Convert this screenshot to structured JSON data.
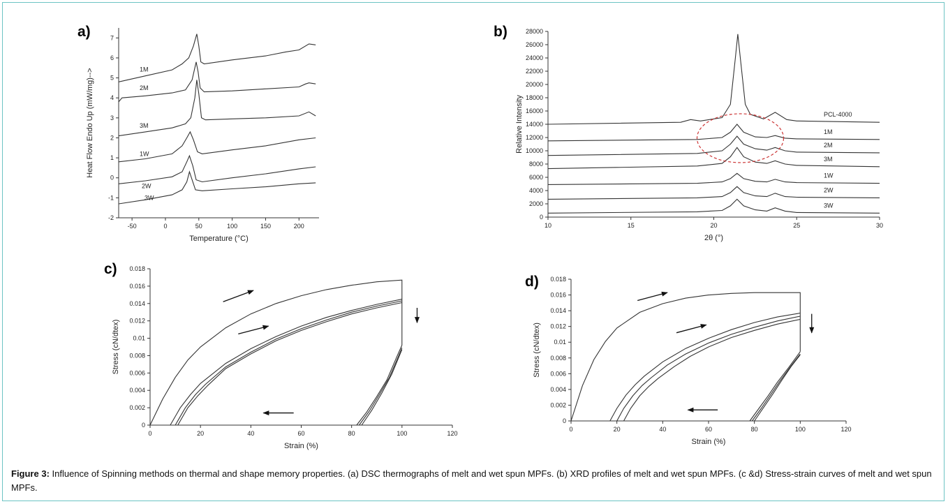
{
  "caption": {
    "label": "Figure 3:",
    "text": " Influence of Spinning methods on thermal and shape memory properties. (a) DSC thermographs of melt and wet spun MPFs. (b) XRD profiles of melt and wet spun MPFs. (c &d) Stress-strain curves of melt and wet spun MPFs."
  },
  "chart_data": [
    {
      "panel": "a)",
      "type": "line",
      "xlabel": "Temperature (°C)",
      "ylabel": "Heat Flow Endo Up (mW/mg)-->",
      "xlim": [
        -70,
        230
      ],
      "ylim": [
        -2,
        7.5
      ],
      "xticks": [
        -50,
        0,
        50,
        100,
        150,
        200
      ],
      "yticks": [
        -2,
        -1,
        0,
        1,
        2,
        3,
        4,
        5,
        6,
        7
      ],
      "series": [
        {
          "name": "1M",
          "x": [
            -70,
            -30,
            10,
            25,
            35,
            42,
            47,
            50,
            53,
            58,
            100,
            150,
            180,
            200,
            215,
            225
          ],
          "y": [
            4.8,
            5.1,
            5.4,
            5.7,
            6.0,
            6.6,
            7.2,
            6.6,
            5.8,
            5.7,
            5.9,
            6.1,
            6.3,
            6.4,
            6.7,
            6.65
          ]
        },
        {
          "name": "2M",
          "x": [
            -70,
            -65,
            -30,
            10,
            30,
            40,
            46,
            49,
            52,
            58,
            100,
            150,
            200,
            210,
            215,
            225
          ],
          "y": [
            3.8,
            4.0,
            4.1,
            4.25,
            4.4,
            4.9,
            5.8,
            5.3,
            4.5,
            4.3,
            4.35,
            4.45,
            4.55,
            4.7,
            4.75,
            4.7
          ]
        },
        {
          "name": "3M",
          "x": [
            -70,
            -30,
            10,
            30,
            38,
            44,
            47,
            50,
            54,
            60,
            100,
            150,
            200,
            215,
            225
          ],
          "y": [
            2.1,
            2.3,
            2.5,
            2.7,
            3.0,
            4.0,
            4.9,
            4.2,
            3.0,
            2.9,
            2.95,
            3.0,
            3.1,
            3.3,
            3.1
          ]
        },
        {
          "name": "1W",
          "x": [
            -70,
            -30,
            10,
            25,
            32,
            37,
            42,
            48,
            55,
            100,
            150,
            200,
            225
          ],
          "y": [
            0.8,
            0.95,
            1.2,
            1.6,
            2.0,
            2.3,
            1.9,
            1.3,
            1.2,
            1.4,
            1.6,
            1.9,
            2.0
          ]
        },
        {
          "name": "2W",
          "x": [
            -70,
            -30,
            10,
            25,
            32,
            36,
            41,
            46,
            55,
            100,
            150,
            200,
            225
          ],
          "y": [
            -0.3,
            -0.15,
            0.05,
            0.3,
            0.8,
            1.1,
            0.6,
            -0.1,
            -0.2,
            0.0,
            0.2,
            0.45,
            0.55
          ]
        },
        {
          "name": "3W",
          "x": [
            -70,
            -30,
            10,
            25,
            32,
            36,
            40,
            45,
            55,
            100,
            150,
            200,
            225
          ],
          "y": [
            -1.3,
            -1.1,
            -0.85,
            -0.6,
            -0.2,
            0.3,
            -0.1,
            -0.6,
            -0.65,
            -0.55,
            -0.45,
            -0.3,
            -0.25
          ]
        }
      ]
    },
    {
      "panel": "b)",
      "type": "line",
      "xlabel": "2θ (°)",
      "ylabel": "Relative Intensity",
      "xlim": [
        10,
        30
      ],
      "ylim": [
        0,
        28000
      ],
      "xticks": [
        10,
        15,
        20,
        25,
        30
      ],
      "yticks": [
        0,
        2000,
        4000,
        6000,
        8000,
        10000,
        12000,
        14000,
        16000,
        18000,
        20000,
        22000,
        24000,
        26000,
        28000
      ],
      "annotation": "dashed red ellipse around 1M-3M peaks near 2θ 21.5°",
      "series": [
        {
          "name": "PCL-4000",
          "x": [
            10,
            18,
            18.6,
            19.2,
            20.5,
            21.0,
            21.3,
            21.45,
            21.6,
            21.9,
            22.2,
            23.0,
            23.7,
            24.4,
            25,
            30
          ],
          "y": [
            14000,
            14300,
            14700,
            14500,
            15000,
            17000,
            24000,
            27600,
            24000,
            17000,
            15500,
            14800,
            15800,
            14700,
            14500,
            14300
          ]
        },
        {
          "name": "1M",
          "x": [
            10,
            19,
            20.5,
            21.0,
            21.4,
            21.8,
            22.5,
            23.2,
            23.7,
            24.3,
            25,
            30
          ],
          "y": [
            11500,
            11700,
            12000,
            12800,
            14000,
            12800,
            12100,
            12000,
            12300,
            11900,
            11800,
            11700
          ]
        },
        {
          "name": "2M",
          "x": [
            10,
            19,
            20.5,
            21.0,
            21.4,
            21.8,
            22.5,
            23.2,
            23.7,
            24.3,
            25,
            30
          ],
          "y": [
            9300,
            9600,
            10000,
            11000,
            12200,
            11000,
            10300,
            10100,
            10500,
            10000,
            9800,
            9700
          ]
        },
        {
          "name": "3M",
          "x": [
            10,
            19,
            20.5,
            21.0,
            21.4,
            21.8,
            22.5,
            23.2,
            23.7,
            24.3,
            25,
            30
          ],
          "y": [
            7300,
            7700,
            8100,
            9100,
            10500,
            9100,
            8300,
            8100,
            8500,
            8000,
            7800,
            7600
          ]
        },
        {
          "name": "1W",
          "x": [
            10,
            19,
            20.5,
            21.0,
            21.4,
            21.8,
            22.5,
            23.2,
            23.7,
            24.3,
            25,
            30
          ],
          "y": [
            4900,
            5100,
            5300,
            5800,
            6600,
            5800,
            5400,
            5300,
            5700,
            5300,
            5200,
            5100
          ]
        },
        {
          "name": "2W",
          "x": [
            10,
            19,
            20.5,
            21.0,
            21.4,
            21.8,
            22.5,
            23.2,
            23.7,
            24.3,
            25,
            30
          ],
          "y": [
            2700,
            2900,
            3100,
            3700,
            4600,
            3700,
            3200,
            3100,
            3600,
            3100,
            3000,
            2900
          ]
        },
        {
          "name": "3W",
          "x": [
            10,
            19,
            20.5,
            21.0,
            21.4,
            21.8,
            22.5,
            23.2,
            23.7,
            24.3,
            25,
            30
          ],
          "y": [
            600,
            800,
            1000,
            1700,
            2700,
            1700,
            1100,
            900,
            1400,
            900,
            700,
            600
          ]
        }
      ]
    },
    {
      "panel": "c)",
      "type": "line",
      "xlabel": "Strain (%)",
      "ylabel": "Stress (cN/dtex)",
      "xlim": [
        0,
        120
      ],
      "ylim": [
        0,
        0.018
      ],
      "xticks": [
        0,
        20,
        40,
        60,
        80,
        100,
        120
      ],
      "yticks": [
        "0",
        "0.002",
        "0.004",
        "0.006",
        "0.008",
        "0.01",
        "0.012",
        "0.014",
        "0.016",
        "0.018"
      ],
      "series": [
        {
          "x": [
            0,
            5,
            10,
            15,
            20,
            30,
            40,
            50,
            60,
            70,
            80,
            90,
            100,
            100
          ],
          "y": [
            0,
            0.003,
            0.0055,
            0.0075,
            0.009,
            0.0112,
            0.0128,
            0.014,
            0.0149,
            0.0156,
            0.0161,
            0.0165,
            0.0167,
            0.0092
          ]
        },
        {
          "x": [
            8,
            12,
            16,
            20,
            30,
            40,
            50,
            60,
            70,
            80,
            90,
            100
          ],
          "y": [
            0,
            0.002,
            0.0035,
            0.0048,
            0.0071,
            0.0088,
            0.0102,
            0.0114,
            0.0124,
            0.0132,
            0.0139,
            0.0145
          ]
        },
        {
          "x": [
            10,
            14,
            18,
            22,
            30,
            40,
            50,
            60,
            70,
            80,
            90,
            100
          ],
          "y": [
            0,
            0.002,
            0.0035,
            0.0047,
            0.0067,
            0.0084,
            0.0099,
            0.0111,
            0.0121,
            0.013,
            0.0137,
            0.0143
          ]
        },
        {
          "x": [
            11,
            15,
            19,
            23,
            30,
            40,
            50,
            60,
            70,
            80,
            90,
            100
          ],
          "y": [
            0,
            0.002,
            0.0034,
            0.0046,
            0.0065,
            0.0082,
            0.0097,
            0.0109,
            0.0119,
            0.0128,
            0.0135,
            0.0141
          ]
        },
        {
          "x": [
            82,
            86,
            90,
            94,
            98,
            100
          ],
          "y": [
            0,
            0.0015,
            0.0033,
            0.0052,
            0.0079,
            0.0092
          ]
        },
        {
          "x": [
            83,
            87,
            91,
            95,
            99,
            100
          ],
          "y": [
            0,
            0.0016,
            0.0035,
            0.0055,
            0.0082,
            0.0089
          ]
        },
        {
          "x": [
            84,
            88,
            92,
            96,
            100
          ],
          "y": [
            0,
            0.0017,
            0.0037,
            0.0059,
            0.0087
          ]
        }
      ],
      "arrows": [
        {
          "from": [
            29,
            0.0142
          ],
          "to": [
            41,
            0.0155
          ]
        },
        {
          "from": [
            35,
            0.0105
          ],
          "to": [
            47,
            0.0114
          ]
        },
        {
          "from": [
            106,
            0.0135
          ],
          "to": [
            106,
            0.0118
          ]
        },
        {
          "from": [
            57,
            0.0014
          ],
          "to": [
            45,
            0.0014
          ]
        }
      ]
    },
    {
      "panel": "d)",
      "type": "line",
      "xlabel": "Strain (%)",
      "ylabel": "Stress (cN/dtex)",
      "xlim": [
        0,
        120
      ],
      "ylim": [
        0,
        0.018
      ],
      "xticks": [
        0,
        20,
        40,
        60,
        80,
        100,
        120
      ],
      "yticks": [
        "0",
        "0.002",
        "0.004",
        "0.006",
        "0.008",
        "0.01",
        "0.012",
        "0.014",
        "0.016",
        "0.018"
      ],
      "series": [
        {
          "x": [
            0,
            5,
            10,
            15,
            20,
            30,
            40,
            50,
            60,
            70,
            80,
            90,
            100,
            100
          ],
          "y": [
            0,
            0.0045,
            0.0078,
            0.0101,
            0.0118,
            0.0138,
            0.0149,
            0.0156,
            0.016,
            0.0162,
            0.0163,
            0.0163,
            0.0163,
            0.0088
          ]
        },
        {
          "x": [
            17,
            20,
            24,
            28,
            32,
            40,
            50,
            60,
            70,
            80,
            90,
            100
          ],
          "y": [
            0,
            0.0016,
            0.0033,
            0.0046,
            0.0057,
            0.0075,
            0.0092,
            0.0105,
            0.0116,
            0.0125,
            0.0132,
            0.0137
          ]
        },
        {
          "x": [
            20,
            23,
            27,
            31,
            35,
            42,
            50,
            60,
            70,
            80,
            90,
            100
          ],
          "y": [
            0,
            0.0016,
            0.0032,
            0.0045,
            0.0055,
            0.0071,
            0.0085,
            0.0099,
            0.011,
            0.0119,
            0.0127,
            0.0133
          ]
        },
        {
          "x": [
            23,
            26,
            30,
            34,
            38,
            45,
            52,
            60,
            70,
            80,
            90,
            100
          ],
          "y": [
            0,
            0.0016,
            0.0032,
            0.0044,
            0.0054,
            0.0069,
            0.0082,
            0.0094,
            0.0106,
            0.0115,
            0.0123,
            0.0129
          ]
        },
        {
          "x": [
            78,
            82,
            86,
            90,
            95,
            100
          ],
          "y": [
            0,
            0.0016,
            0.0032,
            0.0049,
            0.0068,
            0.0088
          ]
        },
        {
          "x": [
            79,
            83,
            87,
            91,
            96,
            100
          ],
          "y": [
            0,
            0.0016,
            0.0033,
            0.005,
            0.007,
            0.0085
          ]
        },
        {
          "x": [
            80,
            84,
            88,
            92,
            96,
            100
          ],
          "y": [
            0,
            0.0017,
            0.0034,
            0.0052,
            0.0069,
            0.0084
          ]
        }
      ],
      "arrows": [
        {
          "from": [
            29,
            0.0153
          ],
          "to": [
            42,
            0.0163
          ]
        },
        {
          "from": [
            46,
            0.0112
          ],
          "to": [
            59,
            0.0122
          ]
        },
        {
          "from": [
            105,
            0.0136
          ],
          "to": [
            105,
            0.0112
          ]
        },
        {
          "from": [
            64,
            0.0014
          ],
          "to": [
            51,
            0.0014
          ]
        }
      ]
    }
  ]
}
